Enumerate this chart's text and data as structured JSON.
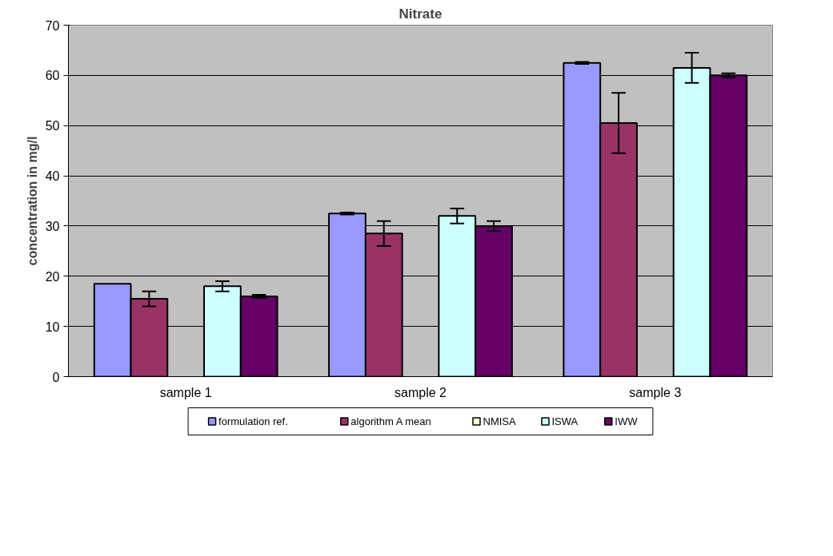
{
  "chart_data": {
    "type": "bar",
    "title": "Nitrate",
    "ylabel": "concentration in mg/l",
    "categories": [
      "sample 1",
      "sample 2",
      "sample 3"
    ],
    "series": [
      {
        "name": "formulation ref.",
        "color": "#9999ff",
        "values": [
          18.5,
          32.5,
          62.5
        ],
        "errors": [
          null,
          0.2,
          0.2
        ]
      },
      {
        "name": "algorithm A mean",
        "color": "#993366",
        "values": [
          15.5,
          28.5,
          50.5
        ],
        "errors": [
          1.5,
          2.5,
          6
        ]
      },
      {
        "name": "NMISA",
        "color": "#ffffcc",
        "values": [
          null,
          null,
          null
        ]
      },
      {
        "name": "ISWA",
        "color": "#ccffff",
        "values": [
          18,
          32,
          61.5
        ],
        "errors": [
          1,
          1.5,
          3
        ]
      },
      {
        "name": "IWW",
        "color": "#660066",
        "values": [
          16,
          30,
          60
        ],
        "errors": [
          0.3,
          1,
          0.4
        ]
      }
    ],
    "ylim": [
      0,
      70
    ],
    "yticks": [
      0,
      10,
      20,
      30,
      40,
      50,
      60,
      70
    ],
    "grid": "y",
    "legend": "bottom"
  }
}
